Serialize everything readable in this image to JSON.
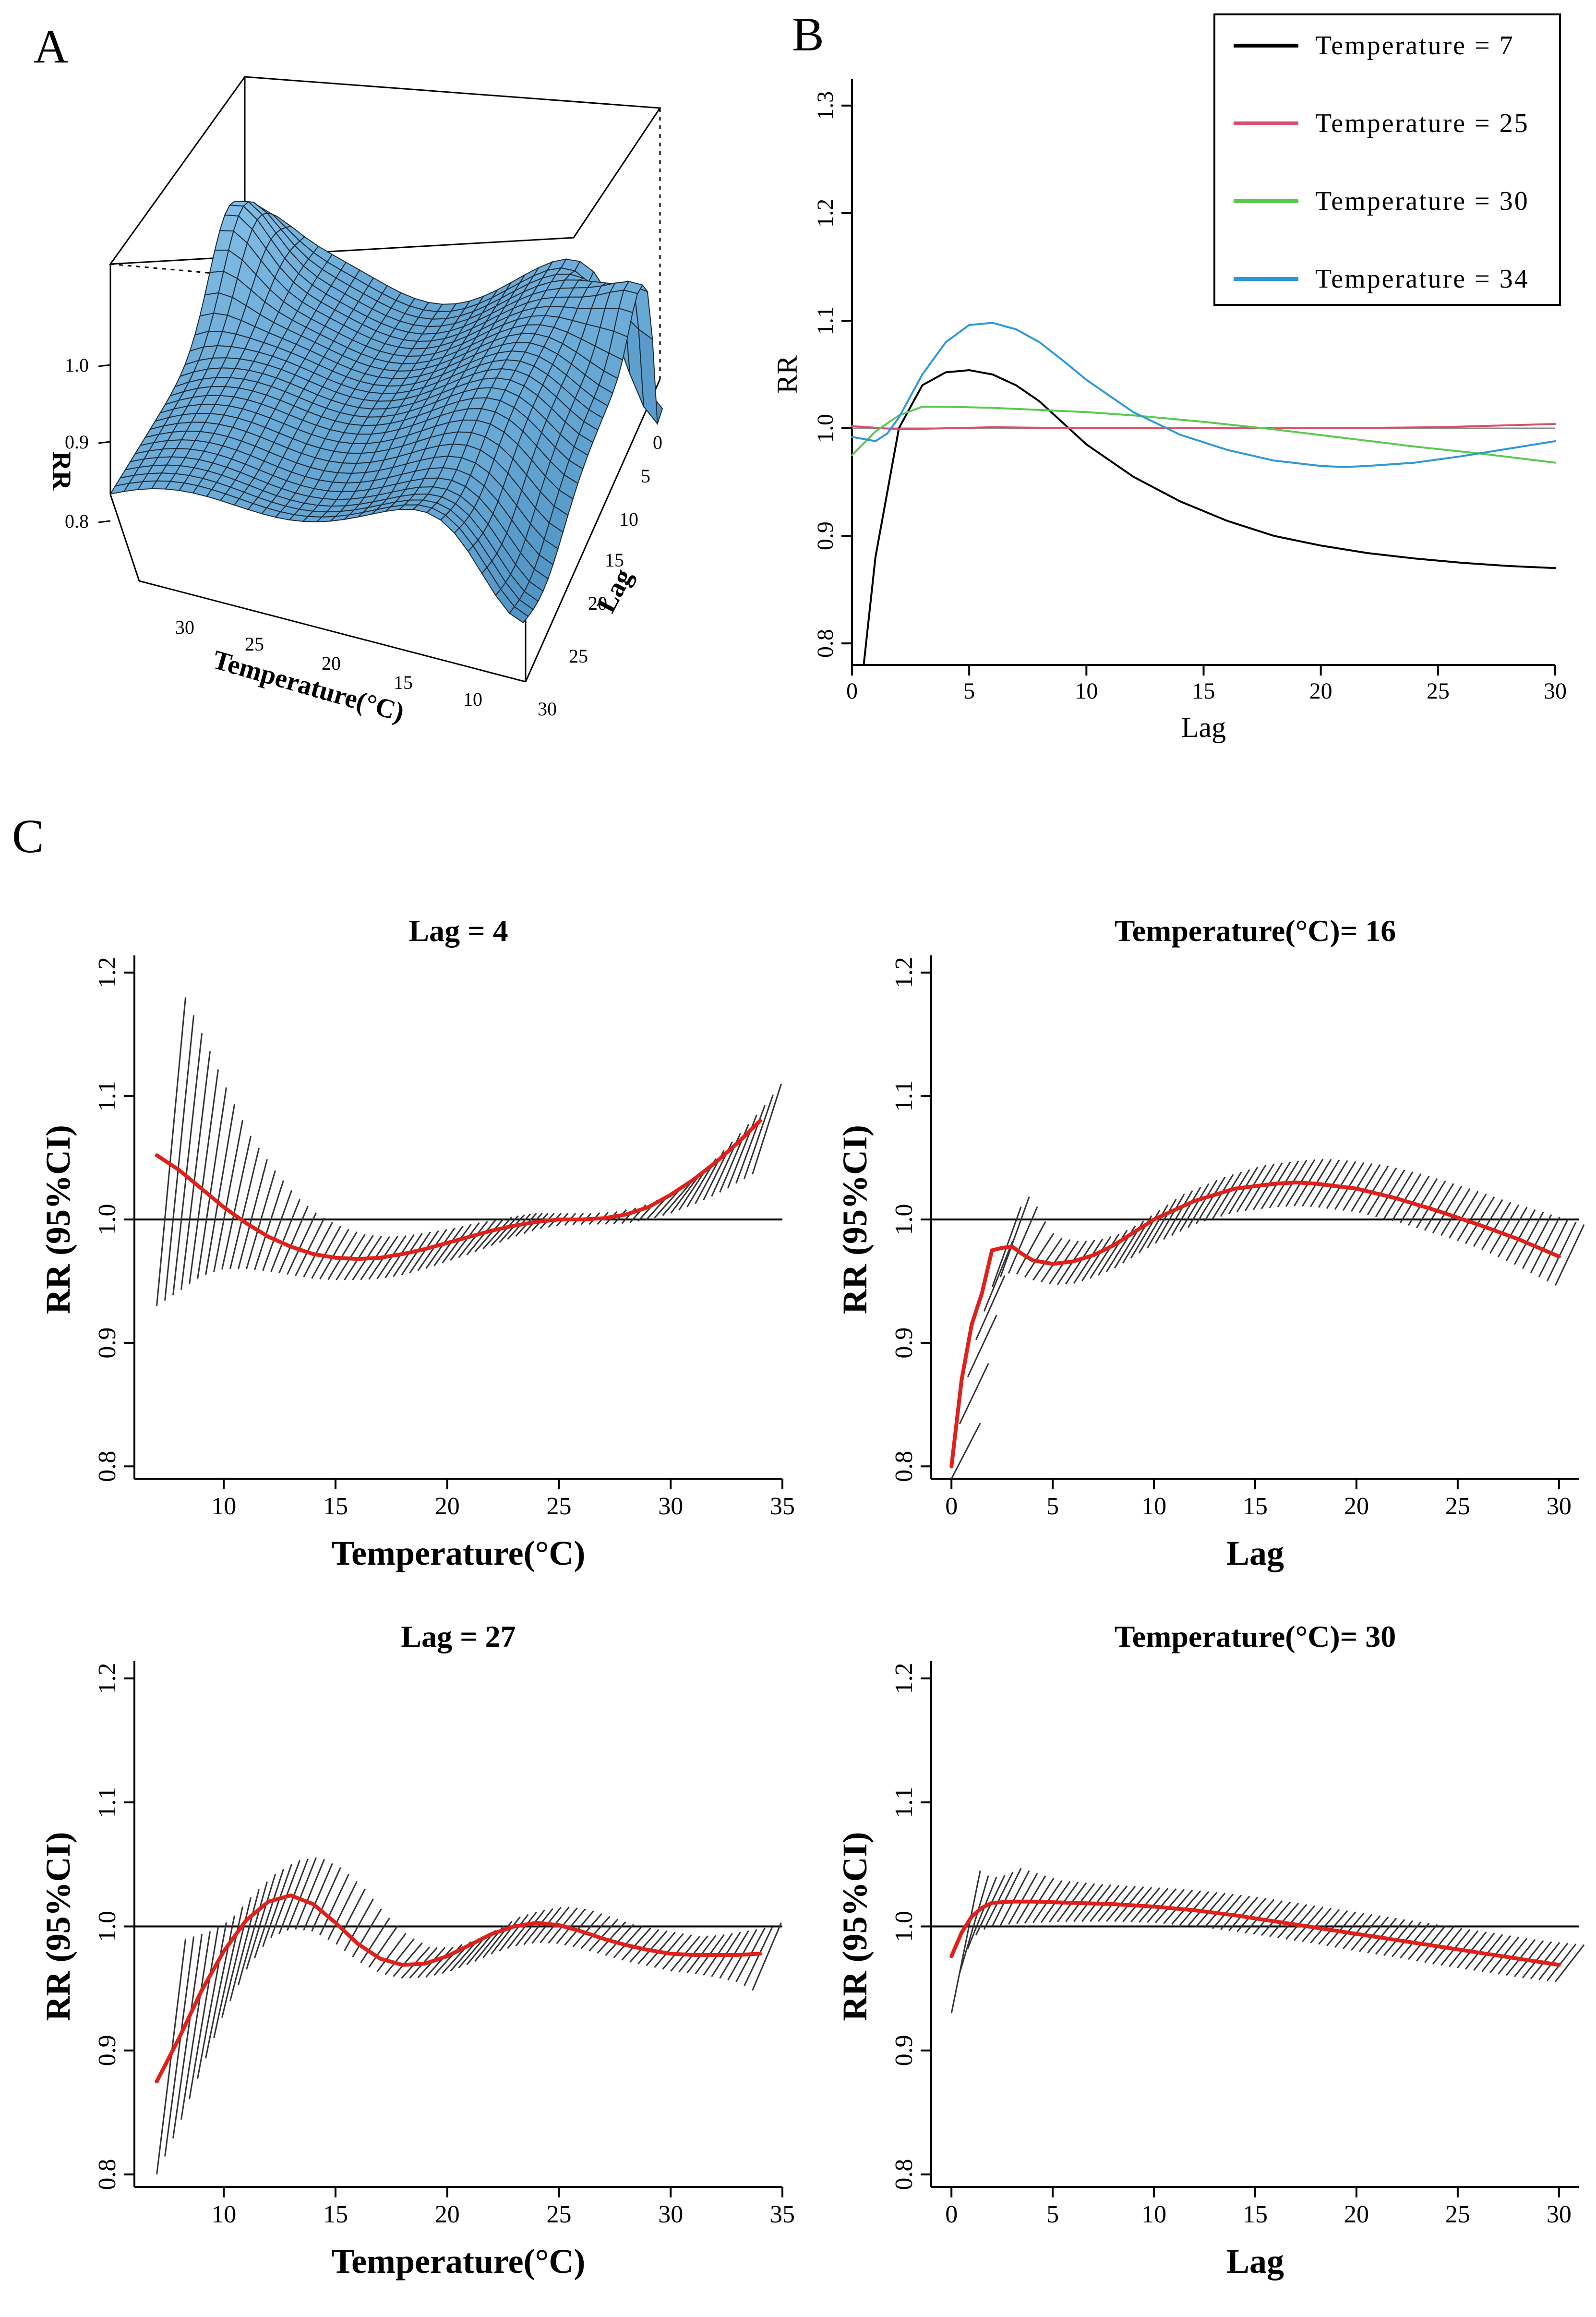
{
  "panel_letters": {
    "a": "A",
    "b": "B",
    "c": "C"
  },
  "chart_data": [
    {
      "id": "A",
      "type": "surface3d",
      "zlabel": "RR",
      "xlabel": "Temperature(°C)",
      "ylabel": "Lag",
      "x_ticks": [
        "30",
        "25",
        "20",
        "15",
        "10"
      ],
      "y_ticks": [
        "0",
        "5",
        "10",
        "15",
        "20",
        "25",
        "30"
      ],
      "z_ticks": [
        "1.0",
        "0.9",
        "0.8"
      ],
      "surface_color": "#6aaed6",
      "grid_color": "#1c2a36"
    },
    {
      "id": "B",
      "type": "line",
      "xlabel": "Lag",
      "ylabel": "RR",
      "xlim": [
        0,
        30
      ],
      "ylim": [
        0.78,
        1.32
      ],
      "x_ticks": [
        0,
        5,
        10,
        15,
        20,
        25,
        30
      ],
      "y_ticks": [
        0.8,
        0.9,
        1.0,
        1.1,
        1.2,
        1.3
      ],
      "y_tick_labels": [
        "0.8",
        "0.9",
        "1.0",
        "1.1",
        "1.2",
        "1.3"
      ],
      "reference_line": 1.0,
      "legend_position": "top-right",
      "series": [
        {
          "name": "Temperature = 7",
          "color": "#000000",
          "x": [
            0.5,
            1,
            2,
            3,
            4,
            5,
            6,
            7,
            8,
            9,
            10,
            12,
            14,
            16,
            18,
            20,
            22,
            24,
            26,
            28,
            30
          ],
          "y": [
            0.78,
            0.88,
            1.0,
            1.04,
            1.052,
            1.054,
            1.05,
            1.04,
            1.025,
            1.005,
            0.985,
            0.955,
            0.932,
            0.914,
            0.9,
            0.891,
            0.884,
            0.879,
            0.875,
            0.872,
            0.87
          ]
        },
        {
          "name": "Temperature = 25",
          "color": "#d94f6b",
          "x": [
            0,
            2,
            4,
            6,
            10,
            15,
            20,
            25,
            30
          ],
          "y": [
            1.002,
            0.999,
            1.0,
            1.001,
            1.0,
            1.0,
            1.0,
            1.001,
            1.004
          ]
        },
        {
          "name": "Temperature = 30",
          "color": "#5ac94e",
          "x": [
            0,
            1,
            2,
            3,
            4,
            6,
            8,
            10,
            12,
            15,
            18,
            21,
            24,
            27,
            30
          ],
          "y": [
            0.975,
            0.997,
            1.012,
            1.02,
            1.02,
            1.019,
            1.017,
            1.015,
            1.012,
            1.006,
            0.999,
            0.991,
            0.983,
            0.976,
            0.968
          ]
        },
        {
          "name": "Temperature = 34",
          "color": "#2e98d8",
          "x": [
            0,
            0.5,
            1,
            1.5,
            2,
            3,
            4,
            5,
            6,
            7,
            8,
            9,
            10,
            11,
            12,
            14,
            16,
            18,
            20,
            21,
            22,
            24,
            26,
            28,
            30
          ],
          "y": [
            0.992,
            0.99,
            0.988,
            0.995,
            1.01,
            1.05,
            1.08,
            1.096,
            1.098,
            1.092,
            1.08,
            1.063,
            1.045,
            1.03,
            1.015,
            0.994,
            0.98,
            0.97,
            0.965,
            0.964,
            0.965,
            0.968,
            0.974,
            0.981,
            0.988
          ]
        }
      ]
    },
    {
      "id": "C1",
      "type": "line",
      "title": "Lag = 4",
      "xlabel": "Temperature(°C)",
      "ylabel": "RR (95%CI)",
      "xlim": [
        6,
        35
      ],
      "ylim": [
        0.79,
        1.21
      ],
      "x_ticks": [
        10,
        15,
        20,
        25,
        30,
        35
      ],
      "y_ticks": [
        0.8,
        0.9,
        1.0,
        1.1,
        1.2
      ],
      "y_tick_labels": [
        "0.8",
        "0.9",
        "1.0",
        "1.1",
        "1.2"
      ],
      "reference_line": 1.0,
      "series": [
        {
          "name": "RR",
          "color": "#e0201b",
          "x": [
            7,
            8,
            9,
            10,
            11,
            12,
            13,
            14,
            15,
            16,
            17,
            18,
            19,
            20,
            21,
            22,
            23,
            24,
            25,
            26,
            27,
            28,
            29,
            30,
            31,
            32,
            33,
            34
          ],
          "y": [
            1.052,
            1.04,
            1.025,
            1.01,
            0.997,
            0.986,
            0.978,
            0.972,
            0.969,
            0.968,
            0.969,
            0.972,
            0.976,
            0.981,
            0.986,
            0.991,
            0.995,
            0.998,
            1.0,
            1.0,
            1.001,
            1.004,
            1.01,
            1.02,
            1.032,
            1.046,
            1.062,
            1.08
          ],
          "lower": [
            0.93,
            0.942,
            0.954,
            0.96,
            0.96,
            0.958,
            0.955,
            0.952,
            0.951,
            0.951,
            0.952,
            0.955,
            0.96,
            0.966,
            0.972,
            0.979,
            0.986,
            0.992,
            0.995,
            0.996,
            0.996,
            0.997,
            1.0,
            1.005,
            1.012,
            1.02,
            1.03,
            1.04
          ],
          "upper": [
            1.18,
            1.14,
            1.1,
            1.065,
            1.04,
            1.018,
            1.003,
            0.994,
            0.988,
            0.986,
            0.987,
            0.99,
            0.993,
            0.997,
            1.0,
            1.003,
            1.005,
            1.005,
            1.005,
            1.005,
            1.006,
            1.01,
            1.02,
            1.036,
            1.054,
            1.073,
            1.094,
            1.118
          ]
        }
      ]
    },
    {
      "id": "C2",
      "type": "line",
      "title": "Temperature(°C)= 16",
      "xlabel": "Lag",
      "ylabel": "RR (95%CI)",
      "xlim": [
        -1,
        31
      ],
      "ylim": [
        0.79,
        1.21
      ],
      "x_ticks": [
        0,
        5,
        10,
        15,
        20,
        25,
        30
      ],
      "y_ticks": [
        0.8,
        0.9,
        1.0,
        1.1,
        1.2
      ],
      "y_tick_labels": [
        "0.8",
        "0.9",
        "1.0",
        "1.1",
        "1.2"
      ],
      "reference_line": 1.0,
      "series": [
        {
          "name": "RR",
          "color": "#e0201b",
          "x": [
            0,
            0.5,
            1,
            1.5,
            2,
            2.5,
            3,
            3.5,
            4,
            5,
            6,
            7,
            8,
            10,
            12,
            14,
            16,
            17,
            18,
            20,
            22,
            24,
            26,
            28,
            30
          ],
          "y": [
            0.8,
            0.87,
            0.915,
            0.94,
            0.975,
            0.977,
            0.978,
            0.972,
            0.967,
            0.964,
            0.966,
            0.971,
            0.979,
            1.0,
            1.015,
            1.025,
            1.029,
            1.03,
            1.029,
            1.025,
            1.017,
            1.007,
            0.996,
            0.984,
            0.97
          ],
          "lower": [
            0.79,
            0.845,
            0.89,
            0.92,
            0.945,
            0.955,
            0.957,
            0.954,
            0.951,
            0.947,
            0.948,
            0.953,
            0.96,
            0.98,
            0.996,
            1.006,
            1.01,
            1.011,
            1.01,
            1.006,
            0.998,
            0.988,
            0.977,
            0.962,
            0.945
          ],
          "upper": [
            0.835,
            0.895,
            0.94,
            0.975,
            1.01,
            1.02,
            1.005,
            0.99,
            0.985,
            0.982,
            0.984,
            0.989,
            0.998,
            1.02,
            1.034,
            1.044,
            1.048,
            1.049,
            1.048,
            1.044,
            1.036,
            1.026,
            1.015,
            1.005,
            0.995
          ]
        }
      ]
    },
    {
      "id": "C3",
      "type": "line",
      "title": "Lag = 27",
      "xlabel": "Temperature(°C)",
      "ylabel": "RR (95%CI)",
      "xlim": [
        6,
        35
      ],
      "ylim": [
        0.79,
        1.21
      ],
      "x_ticks": [
        10,
        15,
        20,
        25,
        30,
        35
      ],
      "y_ticks": [
        0.8,
        0.9,
        1.0,
        1.1,
        1.2
      ],
      "y_tick_labels": [
        "0.8",
        "0.9",
        "1.0",
        "1.1",
        "1.2"
      ],
      "reference_line": 1.0,
      "series": [
        {
          "name": "RR",
          "color": "#e0201b",
          "x": [
            7,
            8,
            9,
            10,
            11,
            12,
            13,
            14,
            15,
            16,
            17,
            18,
            19,
            20,
            21,
            22,
            23,
            24,
            25,
            26,
            27,
            28,
            29,
            30,
            31,
            32,
            33,
            34
          ],
          "y": [
            0.875,
            0.91,
            0.948,
            0.98,
            1.005,
            1.02,
            1.025,
            1.018,
            1.003,
            0.986,
            0.974,
            0.969,
            0.97,
            0.976,
            0.985,
            0.994,
            1.0,
            1.003,
            1.001,
            0.996,
            0.99,
            0.985,
            0.981,
            0.978,
            0.977,
            0.977,
            0.977,
            0.978
          ],
          "lower": [
            0.8,
            0.84,
            0.885,
            0.93,
            0.965,
            0.99,
            0.998,
            0.996,
            0.986,
            0.972,
            0.962,
            0.958,
            0.959,
            0.963,
            0.97,
            0.978,
            0.984,
            0.987,
            0.986,
            0.982,
            0.977,
            0.972,
            0.968,
            0.964,
            0.962,
            0.959,
            0.955,
            0.945
          ],
          "upper": [
            0.99,
            0.995,
            1.005,
            1.025,
            1.042,
            1.053,
            1.056,
            1.047,
            1.031,
            1.009,
            0.992,
            0.983,
            0.983,
            0.989,
            0.998,
            1.008,
            1.013,
            1.016,
            1.014,
            1.008,
            1.002,
            0.998,
            0.995,
            0.992,
            0.993,
            0.996,
            0.999,
            1.005
          ]
        }
      ]
    },
    {
      "id": "C4",
      "type": "line",
      "title": "Temperature(°C)= 30",
      "xlabel": "Lag",
      "ylabel": "RR (95%CI)",
      "xlim": [
        -1,
        31
      ],
      "ylim": [
        0.79,
        1.21
      ],
      "x_ticks": [
        0,
        5,
        10,
        15,
        20,
        25,
        30
      ],
      "y_ticks": [
        0.8,
        0.9,
        1.0,
        1.1,
        1.2
      ],
      "y_tick_labels": [
        "0.8",
        "0.9",
        "1.0",
        "1.1",
        "1.2"
      ],
      "reference_line": 1.0,
      "series": [
        {
          "name": "RR",
          "color": "#e0201b",
          "x": [
            0,
            0.5,
            1,
            1.5,
            2,
            3,
            4,
            6,
            8,
            10,
            12,
            14,
            16,
            18,
            20,
            22,
            24,
            26,
            28,
            30
          ],
          "y": [
            0.976,
            0.995,
            1.008,
            1.015,
            1.019,
            1.02,
            1.02,
            1.019,
            1.018,
            1.016,
            1.013,
            1.009,
            1.004,
            0.999,
            0.994,
            0.989,
            0.984,
            0.979,
            0.974,
            0.969
          ],
          "lower": [
            0.93,
            0.97,
            0.99,
            0.997,
            1.0,
            1.002,
            1.003,
            1.004,
            1.004,
            1.003,
            1.0,
            0.996,
            0.991,
            0.986,
            0.98,
            0.975,
            0.969,
            0.964,
            0.959,
            0.955
          ],
          "upper": [
            1.045,
            1.04,
            1.04,
            1.043,
            1.047,
            1.042,
            1.037,
            1.034,
            1.032,
            1.03,
            1.027,
            1.023,
            1.018,
            1.013,
            1.008,
            1.003,
            0.998,
            0.993,
            0.988,
            0.985
          ]
        }
      ]
    }
  ]
}
